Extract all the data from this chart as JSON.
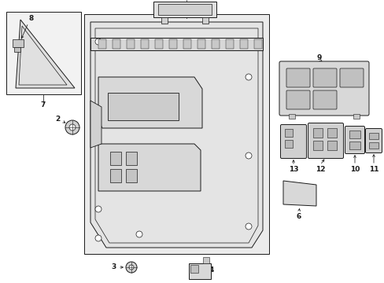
{
  "bg_color": "#ffffff",
  "line_color": "#1a1a1a",
  "panel_fill": "#e8e8e8",
  "inset_fill": "#f0f0f0",
  "part_fill": "#d8d8d8",
  "fig_w": 4.89,
  "fig_h": 3.6,
  "dpi": 100
}
